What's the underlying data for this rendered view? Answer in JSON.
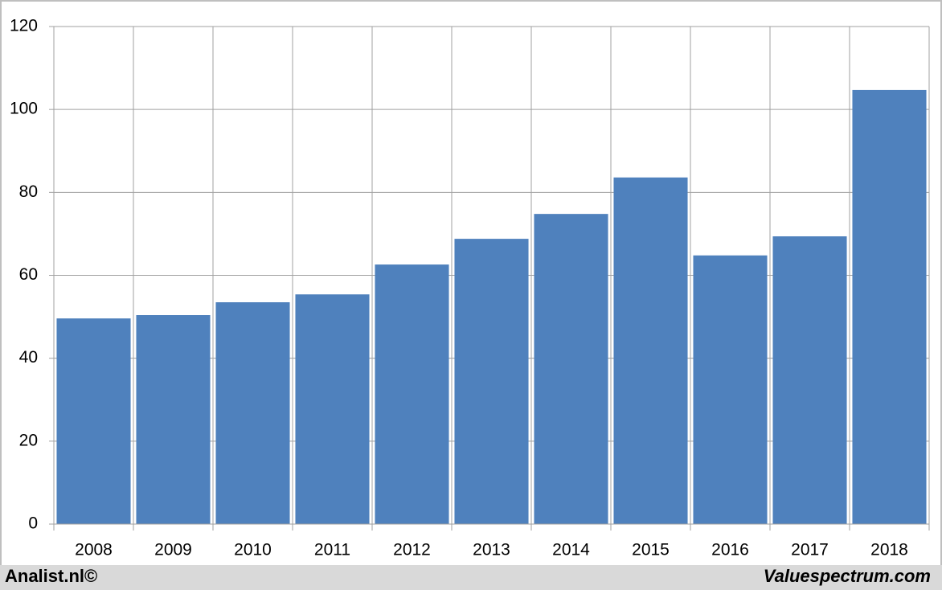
{
  "chart_data": {
    "type": "bar",
    "categories": [
      "2008",
      "2009",
      "2010",
      "2011",
      "2012",
      "2013",
      "2014",
      "2015",
      "2016",
      "2017",
      "2018"
    ],
    "values": [
      49.6,
      50.4,
      53.5,
      55.4,
      62.6,
      68.8,
      74.8,
      83.6,
      64.8,
      69.4,
      104.7
    ],
    "color": "#4f81bd",
    "ylim": [
      0,
      120
    ],
    "yticks": [
      0,
      20,
      40,
      60,
      80,
      100,
      120
    ],
    "grid": true,
    "footer_left": "Analist.nl©",
    "footer_right": "Valuespectrum.com"
  }
}
